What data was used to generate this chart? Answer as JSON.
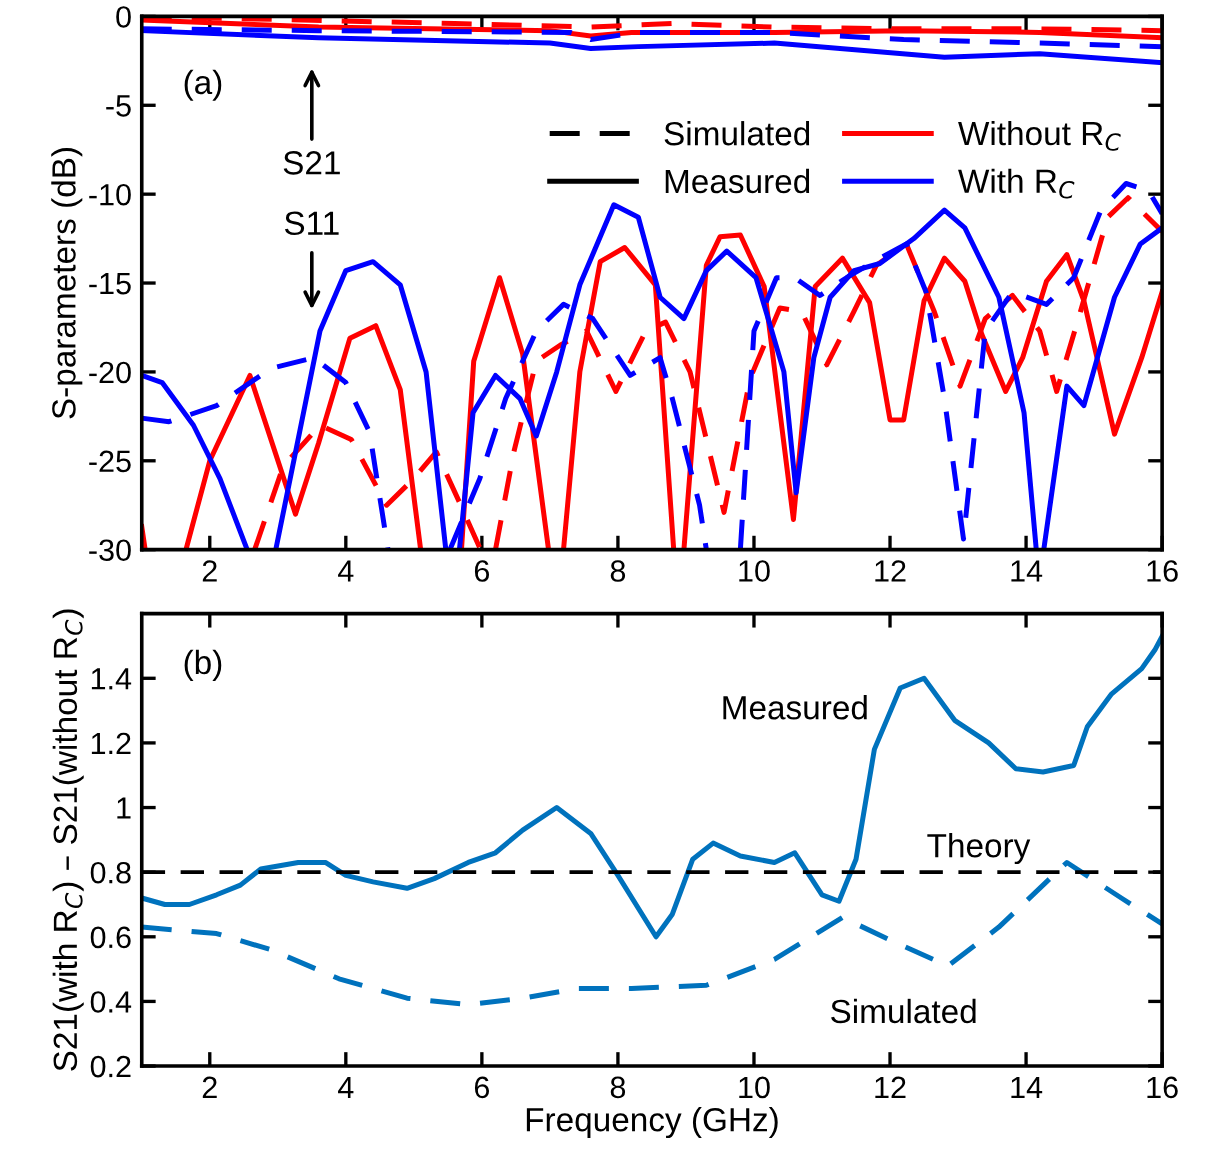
{
  "chart_data": [
    {
      "type": "line",
      "ylabel": "S-parameters (dB)",
      "xlim": [
        1,
        16
      ],
      "ylim": [
        -30,
        0
      ],
      "xticks": [
        2,
        4,
        6,
        8,
        10,
        12,
        14,
        16
      ],
      "yticks": [
        -30,
        -25,
        -20,
        -15,
        -10,
        -5,
        0
      ],
      "grid": false,
      "legend": "top right",
      "annotations": [
        "(a)",
        "S21",
        "S11",
        "Simulated",
        "Measured"
      ],
      "series": [
        {
          "name": "Without R$_{C}$",
          "color": "#ff0000",
          "line_style": "solid",
          "x": [
            1.0,
            1.05,
            1.3,
            1.65,
            2.0,
            2.59,
            3.26,
            3.6,
            4.06,
            4.44,
            4.8,
            5.1,
            5.4,
            5.7,
            5.88,
            6.26,
            6.6,
            6.98,
            7.1,
            7.2,
            7.44,
            7.74,
            8.1,
            8.55,
            8.82,
            8.9,
            8.97,
            9.3,
            9.5,
            9.8,
            10.15,
            10.58,
            10.9,
            11.3,
            11.7,
            12.0,
            12.2,
            12.5,
            12.8,
            13.1,
            13.35,
            13.7,
            13.95,
            14.3,
            14.6,
            14.85,
            15.3,
            15.7,
            16.0
          ],
          "values": [
            -28.7,
            -30,
            null,
            -30,
            -25,
            -20.2,
            -28,
            -24,
            -18.1,
            -17.4,
            -21,
            -30,
            null,
            -30,
            -19.4,
            -14.7,
            -19,
            -30,
            null,
            -30,
            -20,
            -13.8,
            -13.0,
            -15.1,
            -30,
            null,
            -30,
            -14.0,
            -12.4,
            -12.3,
            -15.2,
            -28.3,
            -15.2,
            -13.6,
            -16.1,
            -22.7,
            -22.7,
            -16.0,
            -13.6,
            -14.9,
            -17.9,
            -21.1,
            -19.2,
            -14.9,
            -13.4,
            -16.0,
            -23.5,
            -19.2,
            -15.5
          ]
        },
        {
          "color": "#ff0000",
          "line_style": "dashed",
          "x": [
            2.66,
            3.08,
            3.62,
            4.08,
            4.6,
            5.0,
            5.33,
            5.69,
            5.98,
            6.1,
            6.2,
            6.47,
            6.8,
            7.15,
            7.54,
            7.97,
            8.41,
            8.7,
            9.06,
            9.56,
            9.94,
            10.38,
            10.7,
            11.07,
            11.47,
            11.8,
            12.24,
            12.65,
            13.03,
            13.4,
            13.8,
            14.2,
            14.45,
            14.8,
            15.2,
            15.5,
            16.0
          ],
          "values": [
            -30,
            -25.3,
            -23.0,
            -23.8,
            -27.5,
            -26.0,
            -24.5,
            -27.5,
            -30,
            null,
            -30,
            -24.5,
            -19.4,
            -18.5,
            -17.7,
            -21.1,
            -17.7,
            -17.2,
            -20.0,
            -27.9,
            -20.4,
            -16.4,
            -16.6,
            -19.6,
            -16.6,
            -14.0,
            -12.8,
            -16.6,
            -20.8,
            -17.0,
            -15.7,
            -17.7,
            -21.1,
            -16.6,
            -11.3,
            -10.2,
            -12.1
          ]
        },
        {
          "name": "With R$_{C}$",
          "color": "#0000ff",
          "line_style": "solid",
          "x": [
            1.0,
            1.3,
            1.76,
            2.15,
            2.55,
            2.8,
            2.97,
            3.32,
            3.62,
            4.0,
            4.4,
            4.8,
            5.18,
            5.47,
            5.57,
            5.67,
            5.87,
            6.2,
            6.56,
            6.8,
            7.1,
            7.44,
            7.94,
            8.3,
            8.62,
            8.97,
            9.3,
            9.6,
            10.03,
            10.44,
            10.62,
            10.88,
            11.12,
            11.47,
            11.85,
            12.35,
            12.8,
            13.1,
            13.6,
            13.97,
            14.15,
            14.2,
            14.26,
            14.6,
            14.85,
            15.3,
            15.68,
            16.0
          ],
          "values": [
            -20.2,
            -20.6,
            -23.0,
            -26.0,
            -30,
            null,
            -30,
            -23.4,
            -17.7,
            -14.3,
            -13.8,
            -15.1,
            -20.0,
            -30,
            null,
            -30,
            -22.3,
            -20.2,
            -21.5,
            -23.6,
            -20.0,
            -15.1,
            -10.6,
            -11.3,
            -15.8,
            -17.0,
            -14.3,
            -13.2,
            -14.7,
            -20.0,
            -26.8,
            -19.2,
            -15.8,
            -14.3,
            -13.9,
            -12.5,
            -10.9,
            -11.9,
            -15.8,
            -22.3,
            -30,
            null,
            -30,
            -20.8,
            -21.9,
            -15.8,
            -12.8,
            -11.9
          ]
        },
        {
          "color": "#0000ff",
          "line_style": "dashed",
          "x": [
            1.0,
            1.4,
            2.1,
            2.9,
            3.53,
            4.0,
            4.35,
            4.62,
            5.0,
            5.53,
            5.97,
            6.35,
            6.8,
            7.2,
            7.63,
            8.18,
            8.62,
            8.8,
            9.2,
            9.3,
            9.55,
            9.8,
            10.0,
            10.33,
            10.6,
            10.97,
            11.36,
            11.85,
            12.24,
            12.53,
            12.8,
            13.08,
            13.4,
            13.8,
            14.3,
            14.7,
            15.1,
            15.47,
            15.8,
            16.0
          ],
          "values": [
            -22.6,
            -22.8,
            -21.9,
            -19.8,
            -19.2,
            -20.6,
            -23.4,
            -30,
            null,
            -30,
            -26.0,
            -21.5,
            -17.7,
            -16.2,
            -17.0,
            -20.2,
            -19.2,
            -21.5,
            -27.5,
            -30,
            null,
            -30,
            -17.7,
            -14.7,
            -14.7,
            -15.7,
            -14.7,
            -13.6,
            -12.8,
            -15.5,
            -21.5,
            -29.4,
            -17.7,
            -15.5,
            -16.2,
            -14.7,
            -10.9,
            -9.4,
            -9.8,
            -11.1
          ]
        },
        {
          "color": "#ff0000",
          "line_style": "solid",
          "x": [
            1.0,
            3.6,
            7.0,
            7.6,
            8.2,
            10.3,
            12.2,
            14.2,
            16.0
          ],
          "values": [
            -0.2,
            -0.6,
            -0.8,
            -1.1,
            -0.9,
            -0.9,
            -0.8,
            -0.9,
            -1.2
          ]
        },
        {
          "color": "#ff0000",
          "line_style": "dashed",
          "x": [
            1.0,
            5.6,
            7.6,
            8.8,
            10.3,
            12.2,
            14.2,
            16.0
          ],
          "values": [
            0,
            -0.4,
            -0.6,
            -0.4,
            -0.6,
            -0.7,
            -0.7,
            -0.8
          ]
        },
        {
          "color": "#0000ff",
          "line_style": "dashed",
          "x": [
            1.0,
            3.6,
            7.3,
            7.6,
            8.3,
            10.3,
            12.2,
            14.2,
            16.0
          ],
          "values": [
            -0.7,
            -0.8,
            -0.9,
            -1.3,
            -0.9,
            -0.9,
            -1.3,
            -1.5,
            -1.7
          ]
        },
        {
          "color": "#0000ff",
          "line_style": "solid",
          "x": [
            1.0,
            3.6,
            7.0,
            7.6,
            8.3,
            10.3,
            12.8,
            14.2,
            16.0
          ],
          "values": [
            -0.8,
            -1.2,
            -1.5,
            -1.8,
            -1.7,
            -1.5,
            -2.3,
            -2.1,
            -2.6
          ]
        }
      ]
    },
    {
      "type": "line",
      "xlabel": "Frequency (GHz)",
      "ylabel": "S21(with R$_{C}$) – S21(without R$_{C}$)",
      "xlim": [
        1,
        16
      ],
      "ylim": [
        0.2,
        1.6
      ],
      "xticks": [
        2,
        4,
        6,
        8,
        10,
        12,
        14,
        16
      ],
      "yticks": [
        0.2,
        0.4,
        0.6,
        0.8,
        {
          "value": 1,
          "label": "1"
        },
        1.2,
        1.4
      ],
      "grid": false,
      "legend": false,
      "annotations": [
        "(b)"
      ],
      "ref_lines": [
        {
          "axis": "y",
          "value": 0.8,
          "label": "Theory",
          "color": "#000000",
          "line_style": "dashed"
        }
      ],
      "series": [
        {
          "name": "Measured",
          "color": "#0072bd",
          "line_style": "solid",
          "x": [
            1.0,
            1.34,
            1.7,
            2.1,
            2.45,
            2.75,
            3.3,
            3.7,
            4.0,
            4.4,
            4.9,
            5.3,
            5.8,
            6.2,
            6.6,
            7.1,
            7.6,
            8.0,
            8.56,
            8.8,
            9.1,
            9.4,
            9.8,
            10.3,
            10.6,
            11.0,
            11.25,
            11.5,
            11.77,
            12.15,
            12.5,
            12.95,
            13.45,
            13.85,
            14.25,
            14.7,
            14.9,
            15.25,
            15.7,
            15.9,
            16.0
          ],
          "values": [
            0.72,
            0.7,
            0.7,
            0.73,
            0.76,
            0.81,
            0.83,
            0.83,
            0.79,
            0.77,
            0.75,
            0.78,
            0.83,
            0.86,
            0.93,
            1.0,
            0.92,
            0.79,
            0.6,
            0.67,
            0.84,
            0.89,
            0.85,
            0.83,
            0.86,
            0.73,
            0.71,
            0.84,
            1.18,
            1.37,
            1.4,
            1.27,
            1.2,
            1.12,
            1.11,
            1.13,
            1.25,
            1.35,
            1.43,
            1.49,
            1.53
          ]
        },
        {
          "name": "Simulated",
          "color": "#0072bd",
          "line_style": "dashed",
          "x": [
            1.0,
            2.1,
            2.9,
            3.9,
            4.9,
            5.8,
            6.6,
            7.4,
            8.2,
            9.3,
            10.3,
            11.3,
            12.0,
            12.85,
            13.6,
            14.6,
            15.4,
            16.0
          ],
          "values": [
            0.63,
            0.61,
            0.56,
            0.47,
            0.41,
            0.39,
            0.41,
            0.44,
            0.44,
            0.45,
            0.53,
            0.66,
            0.59,
            0.51,
            0.63,
            0.83,
            0.72,
            0.64
          ]
        }
      ]
    }
  ]
}
